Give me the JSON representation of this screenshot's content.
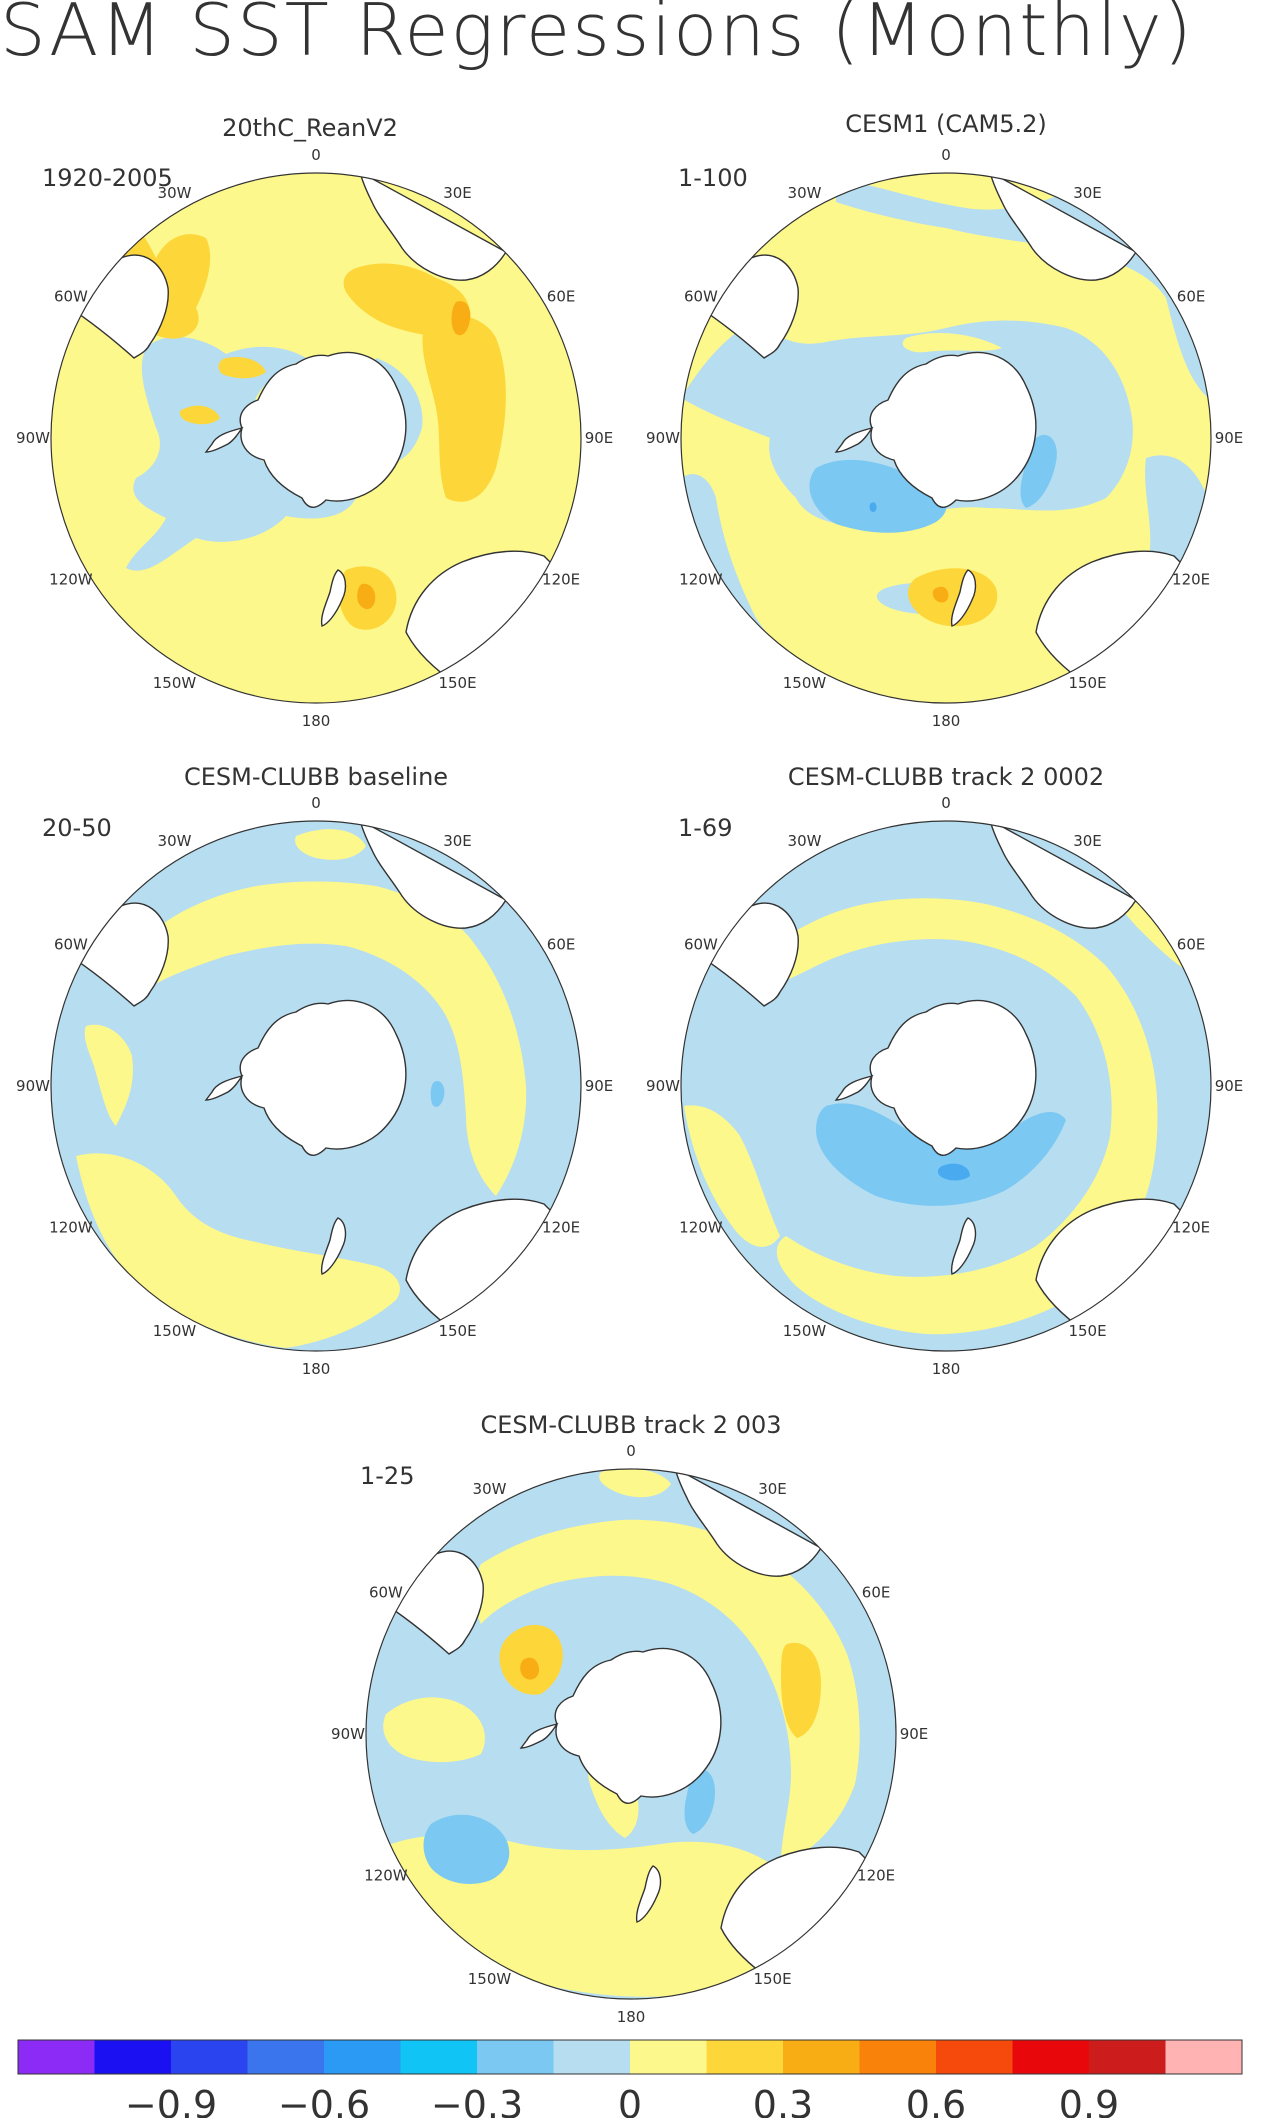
{
  "title": "SAM SST Regressions (Monthly)",
  "colors": {
    "land": "#ffffff",
    "coast": "#333333",
    "neg1": "#b7ddf0",
    "neg2": "#7bc8f2",
    "neg3": "#4aaaf0",
    "pos1": "#fdf88c",
    "pos2": "#fdd63a",
    "pos3": "#f8ad14",
    "pos4": "#f08a10"
  },
  "panels": [
    {
      "id": "reanv2",
      "title": "20thC_ReanV2",
      "period": "1920-2005",
      "base": "pos1"
    },
    {
      "id": "cesm1",
      "title": "CESM1 (CAM5.2)",
      "period": "1-100",
      "base": "pos1"
    },
    {
      "id": "baseline",
      "title": "CESM-CLUBB baseline",
      "period": "20-50",
      "base": "neg1"
    },
    {
      "id": "track0002",
      "title": "CESM-CLUBB track 2 0002",
      "period": "1-69",
      "base": "neg1"
    },
    {
      "id": "track003",
      "title": "CESM-CLUBB track 2 003",
      "period": "1-25",
      "base": "neg1"
    }
  ],
  "longitudes": [
    "0",
    "30E",
    "60E",
    "90E",
    "120E",
    "150E",
    "180",
    "150W",
    "120W",
    "90W",
    "60W",
    "30W"
  ],
  "colorbar": {
    "colors": [
      "#8b2bf5",
      "#1a10f2",
      "#2a45f0",
      "#3a75ee",
      "#2a9af5",
      "#10c4f5",
      "#7bc8f2",
      "#b7ddf0",
      "#fdf88c",
      "#fdd63a",
      "#f8ad14",
      "#f8820a",
      "#f54a0c",
      "#e8080c",
      "#cc1c1c",
      "#ffb3b3"
    ],
    "labels": [
      "−0.9",
      "−0.6",
      "−0.3",
      "0",
      "0.3",
      "0.6",
      "0.9"
    ]
  }
}
